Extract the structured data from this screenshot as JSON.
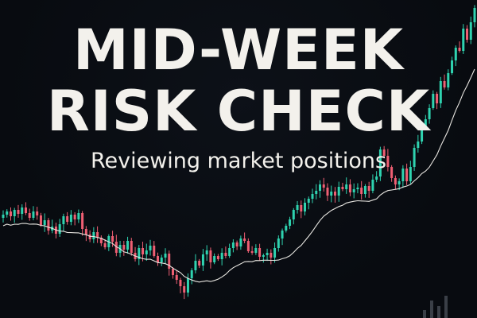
{
  "banner": {
    "title_line_1": "MID-WEEK",
    "title_line_2": "RISK CHECK",
    "subtitle": "Reviewing market positions"
  },
  "colors": {
    "background": "#080b10",
    "bullish": "#2fd3b0",
    "bearish": "#ef5f73",
    "moving_average": "#e8e6e1",
    "volume": "#3a3f47",
    "text": "#f3f1ec"
  },
  "chart_data": {
    "type": "candlestick",
    "moving_average": true,
    "grid": false,
    "candles_close": [
      270,
      266,
      272,
      264,
      269,
      261,
      268,
      274,
      266,
      271,
      283,
      277,
      290,
      285,
      294,
      282,
      272,
      279,
      270,
      276,
      268,
      288,
      295,
      301,
      292,
      299,
      306,
      311,
      297,
      304,
      318,
      308,
      314,
      303,
      318,
      326,
      312,
      320,
      315,
      309,
      322,
      330,
      324,
      319,
      338,
      346,
      352,
      360,
      368,
      350,
      340,
      328,
      334,
      320,
      315,
      330,
      322,
      326,
      318,
      322,
      312,
      305,
      310,
      300,
      303,
      316,
      318,
      312,
      323,
      321,
      318,
      324,
      312,
      300,
      290,
      284,
      276,
      264,
      258,
      266,
      255,
      250,
      244,
      240,
      232,
      236,
      246,
      241,
      246,
      235,
      238,
      232,
      242,
      238,
      236,
      244,
      234,
      240,
      226,
      222,
      188,
      196,
      210,
      224,
      232,
      228,
      212,
      228,
      210,
      186,
      178,
      160,
      150,
      136,
      118,
      130,
      102,
      110,
      92,
      76,
      60,
      64,
      36,
      50,
      28,
      10
    ],
    "volume": [
      10,
      22,
      15,
      28
    ]
  }
}
